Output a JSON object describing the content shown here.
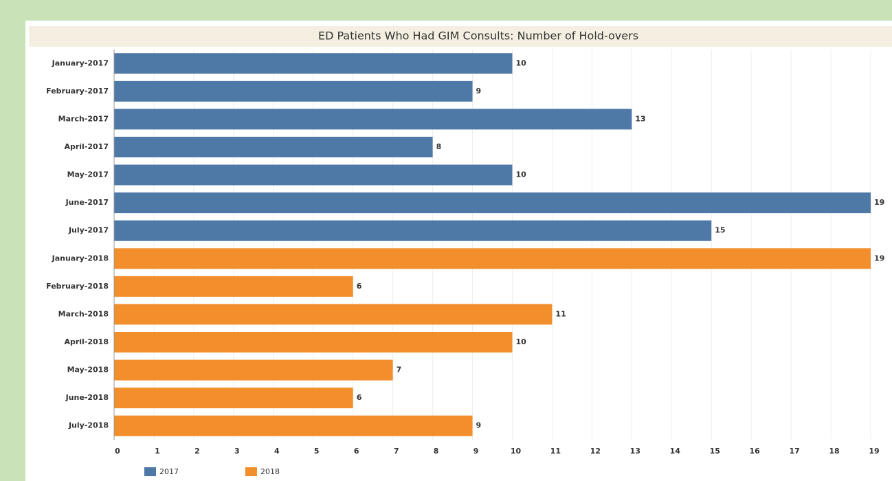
{
  "chart_data": {
    "type": "bar",
    "orientation": "horizontal",
    "title": "ED Patients Who Had GIM Consults: Number of Hold-overs",
    "categories": [
      "January-2017",
      "February-2017",
      "March-2017",
      "April-2017",
      "May-2017",
      "June-2017",
      "July-2017",
      "January-2018",
      "February-2018",
      "March-2018",
      "April-2018",
      "May-2018",
      "June-2018",
      "July-2018"
    ],
    "series": [
      {
        "name": "2017",
        "color": "#4e79a7",
        "values": [
          10,
          9,
          13,
          8,
          10,
          19,
          15,
          null,
          null,
          null,
          null,
          null,
          null,
          null
        ]
      },
      {
        "name": "2018",
        "color": "#f28e2b",
        "values": [
          null,
          null,
          null,
          null,
          null,
          null,
          null,
          19,
          6,
          11,
          10,
          7,
          6,
          9
        ]
      }
    ],
    "xlim": [
      0,
      19.5
    ],
    "xticks": [
      0,
      1,
      2,
      3,
      4,
      5,
      6,
      7,
      8,
      9,
      10,
      11,
      12,
      13,
      14,
      15,
      16,
      17,
      18,
      19
    ],
    "grid": true
  }
}
